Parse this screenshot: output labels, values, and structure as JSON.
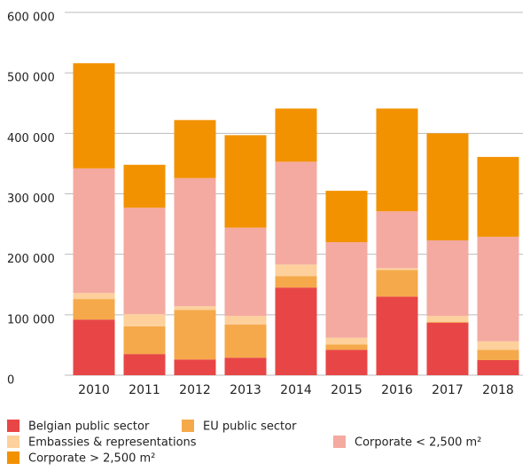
{
  "chart_data": {
    "type": "stacked_bar",
    "categories": [
      "2010",
      "2011",
      "2012",
      "2013",
      "2014",
      "2015",
      "2016",
      "2017",
      "2018"
    ],
    "series": [
      {
        "name": "Belgian public sector",
        "color": "#e84646",
        "values": [
          92000,
          35000,
          26000,
          29000,
          145000,
          42000,
          130000,
          87000,
          25000
        ]
      },
      {
        "name": "EU public sector",
        "color": "#f5a94a",
        "values": [
          34000,
          46000,
          82000,
          55000,
          19000,
          9000,
          44000,
          1000,
          17000
        ]
      },
      {
        "name": "Embassies & representations",
        "color": "#fdd09c",
        "values": [
          10000,
          20000,
          6000,
          14000,
          19000,
          11000,
          3000,
          10000,
          14000
        ]
      },
      {
        "name": "Corporate < 2,500 m²",
        "color": "#f4aaa0",
        "values": [
          206000,
          176000,
          212000,
          146000,
          170000,
          158000,
          94000,
          125000,
          173000
        ]
      },
      {
        "name": "Corporate > 2,500 m²",
        "color": "#f29200",
        "values": [
          174000,
          71000,
          96000,
          153000,
          88000,
          85000,
          170000,
          177000,
          132000
        ]
      }
    ],
    "ylim": [
      0,
      600000
    ],
    "yticks": [
      0,
      {
        "value": 100000,
        "label": "100 000"
      },
      {
        "value": 200000,
        "label": "200 000"
      },
      {
        "value": 300000,
        "label": "300 000"
      },
      {
        "value": 400000,
        "label": "400 000"
      },
      {
        "value": 500000,
        "label": "500 000"
      },
      {
        "value": 600000,
        "label": "600 000"
      }
    ],
    "grid": true
  }
}
